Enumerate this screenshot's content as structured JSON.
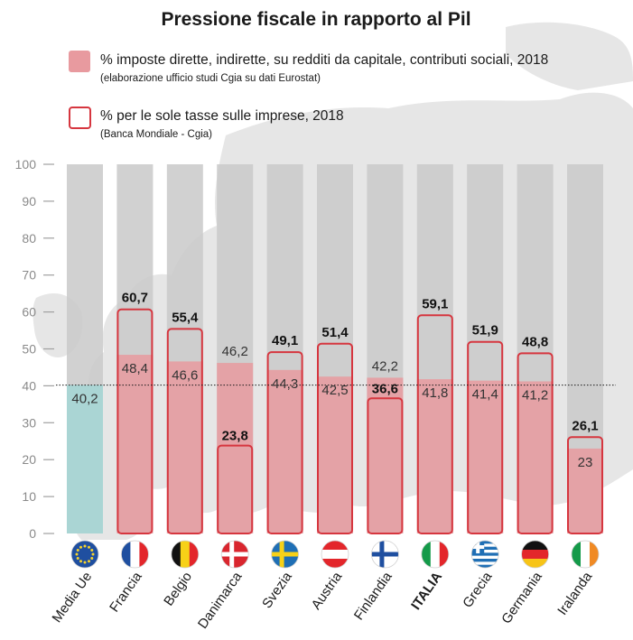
{
  "chart_data": {
    "type": "bar",
    "title": "Pressione fiscale in rapporto al Pil",
    "ylim": [
      0,
      100
    ],
    "yticks": [
      "0",
      "10",
      "20",
      "30",
      "40",
      "50",
      "60",
      "70",
      "80",
      "90",
      "100"
    ],
    "reference_line": 40.2,
    "categories": [
      "Media Ue",
      "Francia",
      "Belgio",
      "Danimarca",
      "Svezia",
      "Austria",
      "Finlandia",
      "ITALIA",
      "Grecia",
      "Germania",
      "Iralanda"
    ],
    "highlight_category": "ITALIA",
    "series": [
      {
        "name": "% imposte dirette, indirette, su redditi da capitale, contributi sociali, 2018",
        "source": "(elaborazione ufficio studi Cgia su dati Eurostat)",
        "values": [
          40.2,
          48.4,
          46.6,
          46.2,
          44.3,
          42.5,
          42.2,
          41.8,
          41.4,
          41.2,
          23
        ],
        "labels": [
          "40,2",
          "48,4",
          "46,6",
          "46,2",
          "44,3",
          "42,5",
          "42,2",
          "41,8",
          "41,4",
          "41,2",
          "23"
        ],
        "color": "#e89a9f",
        "average_color": "#a8d5d4"
      },
      {
        "name": "% per le sole tasse sulle imprese, 2018",
        "source": "(Banca Mondiale -  Cgia)",
        "values": [
          null,
          60.7,
          55.4,
          23.8,
          49.1,
          51.4,
          36.6,
          59.1,
          51.9,
          48.8,
          26.1
        ],
        "labels": [
          "",
          "60,7",
          "55,4",
          "23,8",
          "49,1",
          "51,4",
          "36,6",
          "59,1",
          "51,9",
          "48,8",
          "26,1"
        ],
        "color": "#d6363f"
      }
    ],
    "flags": [
      "eu-flag-icon",
      "france-flag-icon",
      "belgium-flag-icon",
      "denmark-flag-icon",
      "sweden-flag-icon",
      "austria-flag-icon",
      "finland-flag-icon",
      "italy-flag-icon",
      "greece-flag-icon",
      "germany-flag-icon",
      "ireland-flag-icon"
    ],
    "colors": {
      "background_column": "#c9c9c9",
      "map": "#e3e3e3",
      "title": "#1a1a1a"
    }
  }
}
